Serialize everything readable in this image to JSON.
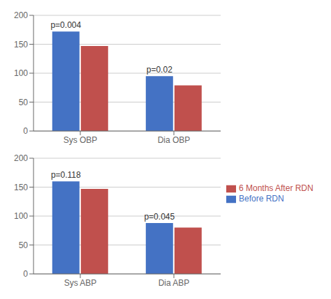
{
  "chart_data": [
    {
      "type": "bar",
      "categories": [
        "Sys OBP",
        "Dia OBP"
      ],
      "series": [
        {
          "name": "Before RDN",
          "color": "#4472C4",
          "values": [
            172,
            95
          ]
        },
        {
          "name": "6 Months After RDN",
          "color": "#C0504D",
          "values": [
            147,
            79
          ]
        }
      ],
      "annotations": [
        "p=0.004",
        "p=0.02"
      ],
      "ylim": [
        0,
        200
      ],
      "yticks": [
        0,
        50,
        100,
        150,
        200
      ],
      "grid": true
    },
    {
      "type": "bar",
      "categories": [
        "Sys ABP",
        "Dia ABP"
      ],
      "series": [
        {
          "name": "Before RDN",
          "color": "#4472C4",
          "values": [
            160,
            88
          ]
        },
        {
          "name": "6 Months After RDN",
          "color": "#C0504D",
          "values": [
            147,
            80
          ]
        }
      ],
      "annotations": [
        "p=0.118",
        "p=0.045"
      ],
      "ylim": [
        0,
        200
      ],
      "yticks": [
        0,
        50,
        100,
        150,
        200
      ],
      "grid": true,
      "legend": "right"
    }
  ]
}
